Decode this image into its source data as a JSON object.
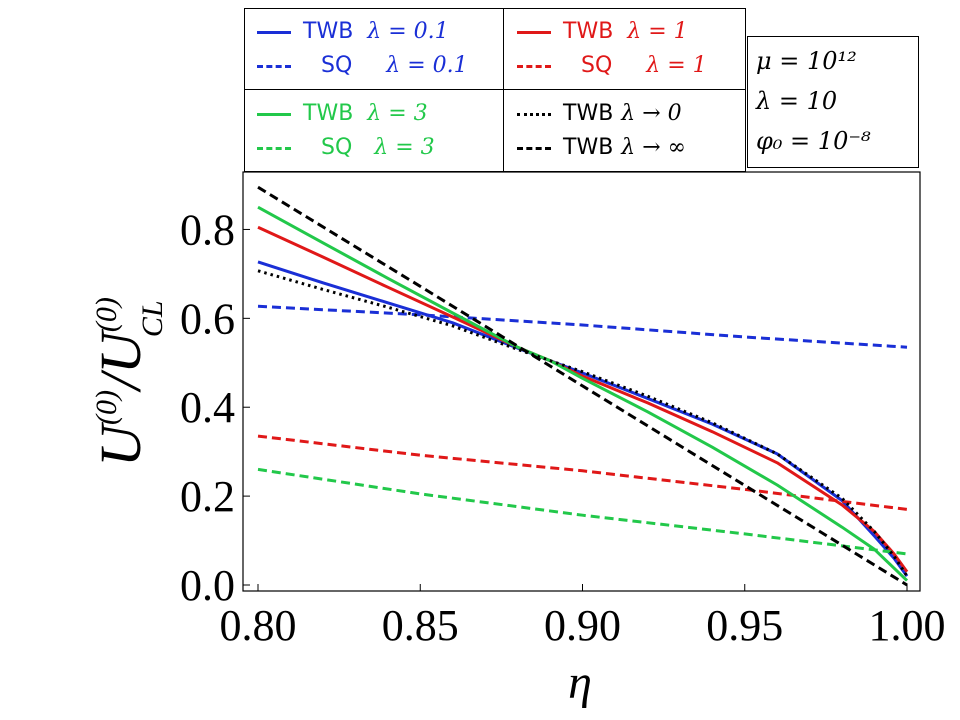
{
  "legend": {
    "entries": [
      {
        "series": "TWB",
        "lambda_text": "λ = 0.1",
        "color": "#1a2fd6",
        "dash": "solid"
      },
      {
        "series": "SQ",
        "lambda_text": "λ = 0.1",
        "color": "#1a2fd6",
        "dash": "dashed"
      },
      {
        "series": "TWB",
        "lambda_text": "λ = 1",
        "color": "#e01818",
        "dash": "solid"
      },
      {
        "series": "SQ",
        "lambda_text": "λ = 1",
        "color": "#e01818",
        "dash": "dashed"
      },
      {
        "series": "TWB",
        "lambda_text": "λ = 3",
        "color": "#22c84a",
        "dash": "solid"
      },
      {
        "series": "SQ",
        "lambda_text": "λ = 3",
        "color": "#22c84a",
        "dash": "dashed"
      },
      {
        "series": "TWB",
        "lambda_text": "λ → 0",
        "color": "#000000",
        "dash": "dotted"
      },
      {
        "series": "TWB",
        "lambda_text": "λ → ∞",
        "color": "#000000",
        "dash": "dashed"
      }
    ]
  },
  "params": {
    "mu": "μ = 10¹²",
    "lambda": "λ = 10",
    "phi0": "φ₀ = 10⁻⁸"
  },
  "chart_data": {
    "type": "line",
    "xlabel": "η",
    "ylabel": "U(0)/U(0)CL",
    "xlim": [
      0.8,
      1.0
    ],
    "ylim": [
      0.0,
      0.9
    ],
    "x_ticks": [
      "0.80",
      "0.85",
      "0.90",
      "0.95",
      "1.00"
    ],
    "y_ticks": [
      "0.0",
      "0.2",
      "0.4",
      "0.6",
      "0.8"
    ],
    "series": [
      {
        "name": "TWB λ = 0.1",
        "color": "#1a2fd6",
        "dash": "solid",
        "x": [
          0.8,
          0.82,
          0.84,
          0.86,
          0.88,
          0.89,
          0.9,
          0.92,
          0.94,
          0.96,
          0.98,
          0.99,
          0.996,
          1.0
        ],
        "y": [
          0.727,
          0.68,
          0.635,
          0.59,
          0.533,
          0.505,
          0.477,
          0.42,
          0.362,
          0.295,
          0.19,
          0.11,
          0.06,
          0.02
        ]
      },
      {
        "name": "SQ λ = 0.1",
        "color": "#1a2fd6",
        "dash": "dashed",
        "x": [
          0.8,
          0.85,
          0.9,
          0.95,
          1.0
        ],
        "y": [
          0.627,
          0.608,
          0.585,
          0.558,
          0.535
        ]
      },
      {
        "name": "TWB λ = 1",
        "color": "#e01818",
        "dash": "solid",
        "x": [
          0.8,
          0.82,
          0.84,
          0.86,
          0.88,
          0.89,
          0.9,
          0.92,
          0.94,
          0.96,
          0.98,
          0.99,
          0.996,
          1.0
        ],
        "y": [
          0.805,
          0.738,
          0.67,
          0.603,
          0.535,
          0.505,
          0.47,
          0.41,
          0.345,
          0.275,
          0.18,
          0.12,
          0.07,
          0.03
        ]
      },
      {
        "name": "SQ λ = 1",
        "color": "#e01818",
        "dash": "dashed",
        "x": [
          0.8,
          0.85,
          0.9,
          0.95,
          1.0
        ],
        "y": [
          0.335,
          0.292,
          0.257,
          0.215,
          0.17
        ]
      },
      {
        "name": "TWB λ = 3",
        "color": "#22c84a",
        "dash": "solid",
        "x": [
          0.8,
          0.82,
          0.84,
          0.86,
          0.88,
          0.89,
          0.9,
          0.92,
          0.94,
          0.96,
          0.98,
          0.99,
          1.0
        ],
        "y": [
          0.85,
          0.77,
          0.69,
          0.612,
          0.535,
          0.505,
          0.465,
          0.39,
          0.31,
          0.225,
          0.13,
          0.08,
          0.01
        ]
      },
      {
        "name": "SQ λ = 3",
        "color": "#22c84a",
        "dash": "dashed",
        "x": [
          0.8,
          0.85,
          0.9,
          0.95,
          1.0
        ],
        "y": [
          0.26,
          0.205,
          0.157,
          0.115,
          0.07
        ]
      },
      {
        "name": "TWB λ → 0",
        "color": "#000000",
        "dash": "dotted",
        "x": [
          0.8,
          0.82,
          0.84,
          0.86,
          0.88,
          0.89,
          0.9,
          0.92,
          0.94,
          0.96,
          0.98,
          0.99,
          0.996,
          1.0
        ],
        "y": [
          0.707,
          0.665,
          0.625,
          0.583,
          0.53,
          0.505,
          0.48,
          0.425,
          0.365,
          0.295,
          0.195,
          0.12,
          0.065,
          0.02
        ]
      },
      {
        "name": "TWB λ → ∞",
        "color": "#000000",
        "dash": "dashed",
        "x": [
          0.8,
          0.85,
          0.9,
          0.95,
          1.0
        ],
        "y": [
          0.895,
          0.672,
          0.448,
          0.224,
          0.0
        ]
      }
    ]
  }
}
